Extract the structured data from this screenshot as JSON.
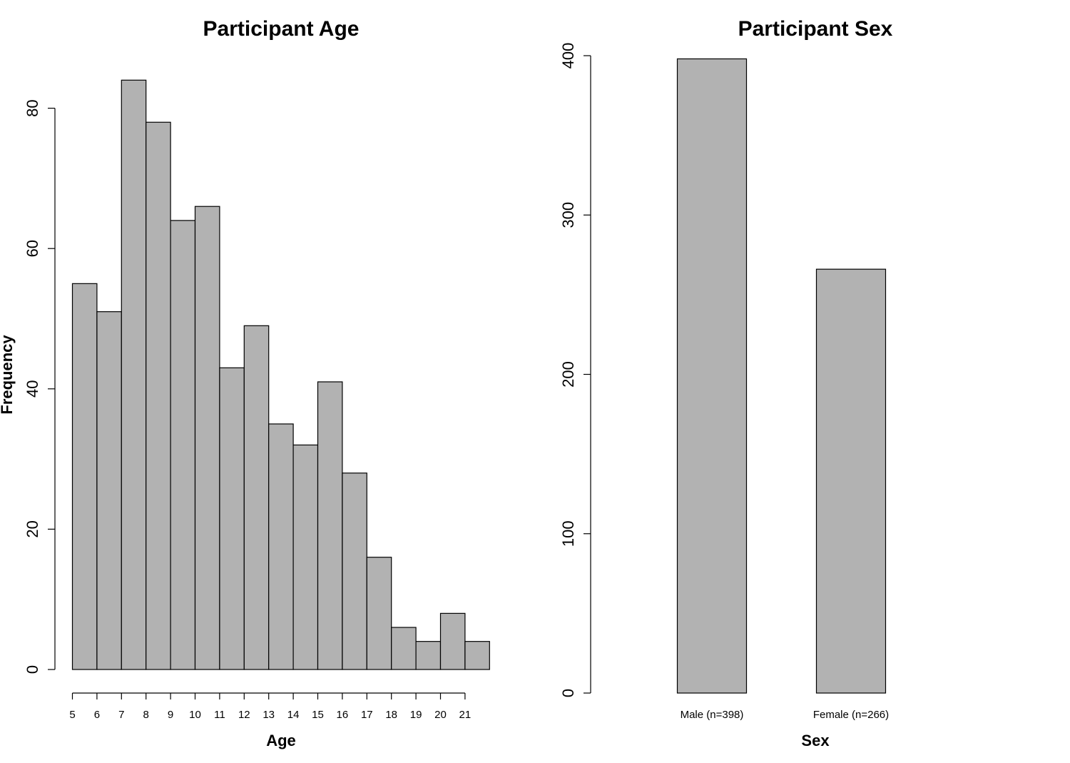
{
  "chart_data": [
    {
      "type": "bar",
      "title": "Participant Age",
      "xlabel": "Age",
      "ylabel": "Frequency",
      "categories": [
        "5",
        "6",
        "7",
        "8",
        "9",
        "10",
        "11",
        "12",
        "13",
        "14",
        "15",
        "16",
        "17",
        "18",
        "19",
        "20",
        "21"
      ],
      "bin_edges": [
        5,
        6,
        7,
        8,
        9,
        10,
        11,
        12,
        13,
        14,
        15,
        16,
        17,
        18,
        19,
        20,
        21,
        22
      ],
      "values": [
        55,
        51,
        84,
        78,
        64,
        66,
        43,
        49,
        35,
        32,
        41,
        28,
        16,
        6,
        4,
        8,
        4
      ],
      "yticks": [
        "0",
        "20",
        "40",
        "60",
        "80"
      ],
      "ylim": [
        0,
        88
      ],
      "grid": false,
      "bar_color": "#b2b2b2"
    },
    {
      "type": "bar",
      "title": "Participant Sex",
      "xlabel": "Sex",
      "ylabel": "",
      "categories": [
        "Male (n=398)",
        "Female (n=266)"
      ],
      "values": [
        398,
        266
      ],
      "yticks": [
        "0",
        "100",
        "200",
        "300",
        "400"
      ],
      "ylim": [
        0,
        400
      ],
      "grid": false,
      "bar_color": "#b2b2b2"
    }
  ]
}
